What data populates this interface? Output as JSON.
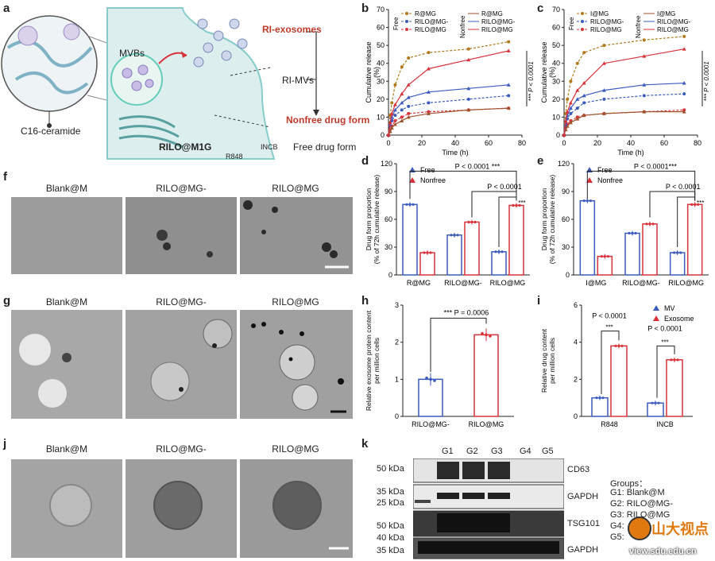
{
  "panel_labels": {
    "a": "a",
    "b": "b",
    "c": "c",
    "d": "d",
    "e": "e",
    "f": "f",
    "g": "g",
    "h": "h",
    "i": "i",
    "j": "j",
    "k": "k"
  },
  "schematic": {
    "mvbs": "MVBs",
    "c16": "C16-ceramide",
    "rilo_m1g": "RILO@M1G",
    "ri_exosomes": "RI-exosomes",
    "ri_mvs": "RI-MVs",
    "nonfree": "Nonfree drug form",
    "free": "Free drug form",
    "incb": "INCB",
    "r848": "R848"
  },
  "colors": {
    "gold": "#b07a1c",
    "red": "#d9323a",
    "blue": "#3b5bbf",
    "brown": "#a0522d",
    "darkblue": "#23408e"
  },
  "micrographs": {
    "f": [
      "Blank@M",
      "RILO@MG-",
      "RILO@MG"
    ],
    "g": [
      "Blank@M",
      "RILO@MG-",
      "RILO@MG"
    ],
    "j": [
      "Blank@M",
      "RILO@MG-",
      "RILO@MG"
    ]
  },
  "western": {
    "lanes": [
      "G1",
      "G2",
      "G3",
      "G4",
      "G5"
    ],
    "markers": [
      "50 kDa",
      "35 kDa",
      "25 kDa",
      "50 kDa",
      "40 kDa",
      "35 kDa"
    ],
    "proteins": [
      "CD63",
      "GAPDH",
      "TSG101",
      "GAPDH"
    ],
    "groups_title": "Groups：",
    "groups": [
      "G1: Blank@M",
      "G2: RILO@MG-",
      "G3: RILO@MG",
      "G4:",
      "G5:"
    ],
    "watermark": "山大视点",
    "watermark_url": "view.sdu.edu.cn"
  },
  "chart_data": [
    {
      "id": "b",
      "type": "line",
      "xlabel": "Time (h)",
      "ylabel": "Cumulative release (%)",
      "xlim": [
        0,
        80
      ],
      "ylim": [
        0,
        70
      ],
      "xticks": [
        0,
        20,
        40,
        60,
        80
      ],
      "yticks": [
        0,
        10,
        20,
        30,
        40,
        50,
        60,
        70
      ],
      "legend": {
        "free_title": "Free",
        "nonfree_title": "Nonfree",
        "free": [
          "R@MG",
          "RILO@MG-",
          "RILO@MG"
        ],
        "nonfree": [
          "R@MG",
          "RILO@MG-",
          "RILO@MG"
        ]
      },
      "annotation": "*** P < 0.0001",
      "x": [
        0,
        1,
        2,
        4,
        8,
        12,
        24,
        48,
        72
      ],
      "series": [
        {
          "name": "R@MG",
          "group": "Free",
          "color": "#b07a1c",
          "dashed": true,
          "values": [
            0,
            11,
            18,
            28,
            38,
            43,
            46,
            48,
            52
          ]
        },
        {
          "name": "RILO@MG-",
          "group": "Free",
          "color": "#3b5bbf",
          "dashed": true,
          "values": [
            0,
            5,
            8,
            11,
            14,
            16,
            18,
            20,
            22
          ]
        },
        {
          "name": "RILO@MG",
          "group": "Free",
          "color": "#d9323a",
          "dashed": true,
          "values": [
            0,
            3,
            5,
            8,
            10,
            12,
            13,
            14,
            15
          ]
        },
        {
          "name": "R@MG",
          "group": "Nonfree",
          "color": "#a0522d",
          "dashed": false,
          "values": [
            0,
            2,
            4,
            6,
            8,
            10,
            12,
            14,
            15
          ]
        },
        {
          "name": "RILO@MG-",
          "group": "Nonfree",
          "color": "#3b5bbf",
          "dashed": false,
          "values": [
            0,
            6,
            10,
            14,
            18,
            21,
            24,
            26,
            28
          ]
        },
        {
          "name": "RILO@MG",
          "group": "Nonfree",
          "color": "#d9323a",
          "dashed": false,
          "values": [
            0,
            7,
            12,
            17,
            23,
            28,
            37,
            42,
            47
          ]
        }
      ]
    },
    {
      "id": "c",
      "type": "line",
      "xlabel": "Time (h)",
      "ylabel": "Cumulative release (%)",
      "xlim": [
        0,
        80
      ],
      "ylim": [
        0,
        70
      ],
      "xticks": [
        0,
        20,
        40,
        60,
        80
      ],
      "yticks": [
        0,
        10,
        20,
        30,
        40,
        50,
        60,
        70
      ],
      "legend": {
        "free_title": "Free",
        "nonfree_title": "Nonfree",
        "free": [
          "I@MG",
          "RILO@MG-",
          "RILO@MG"
        ],
        "nonfree": [
          "I@MG",
          "RILO@MG-",
          "RILO@MG"
        ]
      },
      "annotation": "*** P < 0.0001",
      "x": [
        0,
        1,
        2,
        4,
        8,
        12,
        24,
        48,
        72
      ],
      "series": [
        {
          "name": "I@MG",
          "group": "Free",
          "color": "#b07a1c",
          "dashed": true,
          "values": [
            0,
            12,
            20,
            30,
            40,
            46,
            50,
            53,
            55
          ]
        },
        {
          "name": "RILO@MG-",
          "group": "Free",
          "color": "#3b5bbf",
          "dashed": true,
          "values": [
            0,
            5,
            9,
            12,
            15,
            18,
            20,
            22,
            23
          ]
        },
        {
          "name": "RILO@MG",
          "group": "Free",
          "color": "#d9323a",
          "dashed": true,
          "values": [
            0,
            4,
            6,
            8,
            10,
            11,
            12,
            13,
            14
          ]
        },
        {
          "name": "I@MG",
          "group": "Nonfree",
          "color": "#a0522d",
          "dashed": false,
          "values": [
            0,
            3,
            5,
            7,
            9,
            11,
            12,
            13,
            13
          ]
        },
        {
          "name": "RILO@MG-",
          "group": "Nonfree",
          "color": "#3b5bbf",
          "dashed": false,
          "values": [
            0,
            6,
            11,
            15,
            20,
            22,
            25,
            28,
            29
          ]
        },
        {
          "name": "RILO@MG",
          "group": "Nonfree",
          "color": "#d9323a",
          "dashed": false,
          "values": [
            0,
            8,
            13,
            18,
            25,
            29,
            40,
            44,
            48
          ]
        }
      ]
    },
    {
      "id": "d",
      "type": "bar",
      "ylabel": "Drug form proportion (% of 72h cumulative release)",
      "ylim": [
        0,
        120
      ],
      "yticks": [
        0,
        30,
        60,
        90,
        120
      ],
      "categories": [
        "R@MG",
        "RILO@MG-",
        "RILO@MG"
      ],
      "series": [
        {
          "name": "Free",
          "color": "#3b5bbf",
          "values": [
            76,
            43,
            25
          ]
        },
        {
          "name": "Nonfree",
          "color": "#d9323a",
          "values": [
            24,
            57,
            75
          ]
        }
      ],
      "annotations": [
        "P < 0.0001 ***",
        "P < 0.0001",
        "***"
      ]
    },
    {
      "id": "e",
      "type": "bar",
      "ylabel": "Drug form proportion (% of 72h cumulative release)",
      "ylim": [
        0,
        120
      ],
      "yticks": [
        0,
        30,
        60,
        90,
        120
      ],
      "categories": [
        "I@MG",
        "RILO@MG-",
        "RILO@MG"
      ],
      "series": [
        {
          "name": "Free",
          "color": "#3b5bbf",
          "values": [
            80,
            45,
            24
          ]
        },
        {
          "name": "Nonfree",
          "color": "#d9323a",
          "values": [
            20,
            55,
            76
          ]
        }
      ],
      "annotations": [
        "P < 0.0001***",
        "P < 0.0001",
        "***"
      ]
    },
    {
      "id": "h",
      "type": "bar",
      "ylabel": "Relative exosome protein content per million cells",
      "ylim": [
        0,
        3
      ],
      "yticks": [
        0,
        1,
        2,
        3
      ],
      "categories": [
        "RILO@MG-",
        "RILO@MG"
      ],
      "values": [
        1.0,
        2.2
      ],
      "colors": [
        "#3b5bbf",
        "#d9323a"
      ],
      "annotations": [
        "*** P = 0.0006"
      ]
    },
    {
      "id": "i",
      "type": "bar",
      "ylabel": "Relative drug content per million cells",
      "ylim": [
        0,
        6
      ],
      "yticks": [
        0,
        2,
        4,
        6
      ],
      "categories": [
        "R848",
        "INCB"
      ],
      "series": [
        {
          "name": "MV",
          "color": "#3b5bbf",
          "values": [
            1.0,
            0.72
          ]
        },
        {
          "name": "Exosome",
          "color": "#d9323a",
          "values": [
            3.8,
            3.05
          ]
        }
      ],
      "annotations": [
        "P < 0.0001",
        "***",
        "P < 0.0001",
        "***"
      ]
    }
  ]
}
